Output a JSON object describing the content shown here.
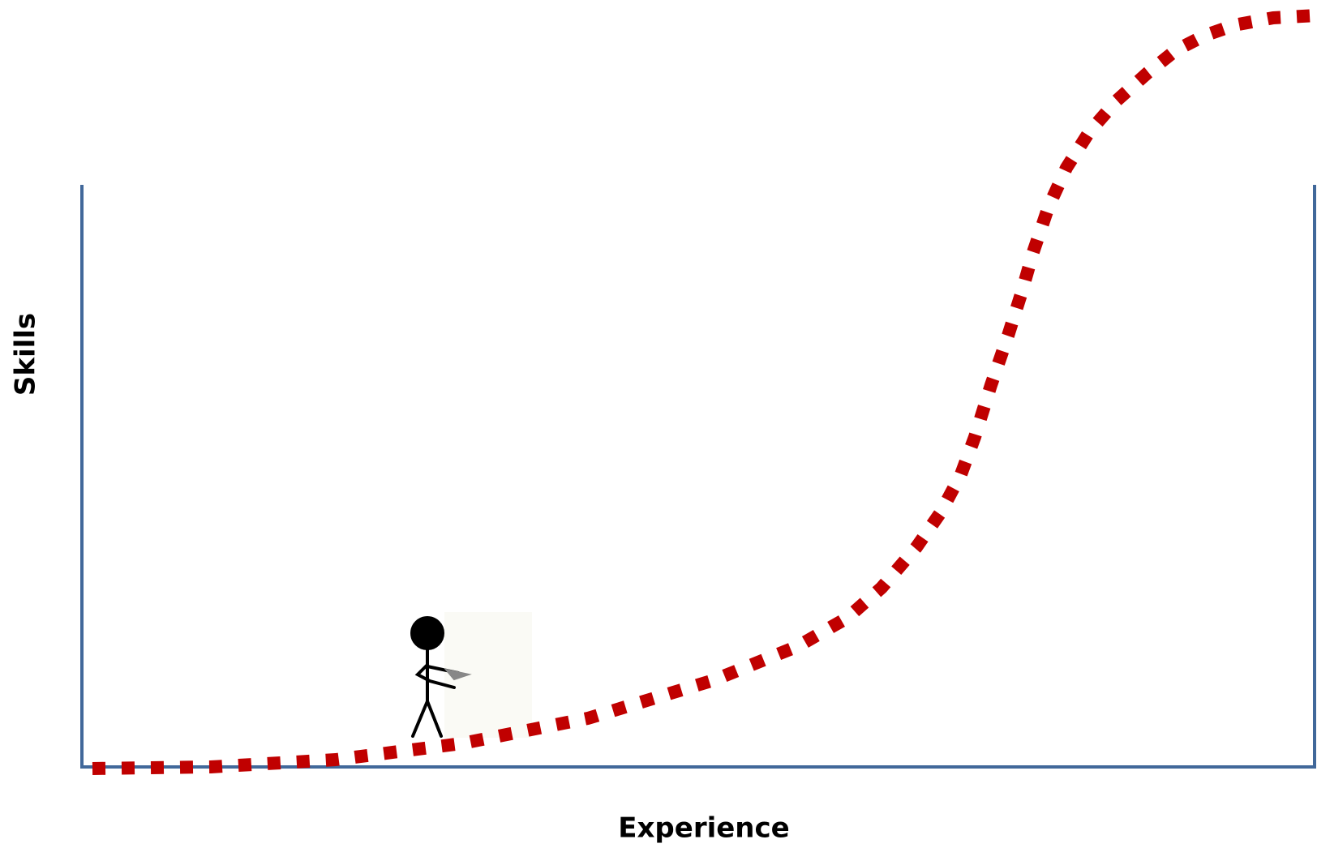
{
  "axis_labels": {
    "y": "Skills",
    "x": "Experience"
  }
}
